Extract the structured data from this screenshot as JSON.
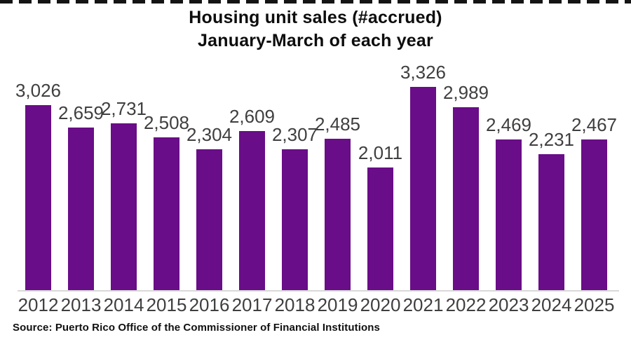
{
  "header": {
    "title_line1": "Housing unit sales (#accrued)",
    "title_line2": "January-March of each year"
  },
  "footer": {
    "source": "Source: Puerto Rico Office of the Commissioner of Financial Institutions"
  },
  "chart_data": {
    "type": "bar",
    "title": "Housing unit sales (#accrued)",
    "subtitle": "January-March of each year",
    "categories": [
      "2012",
      "2013",
      "2014",
      "2015",
      "2016",
      "2017",
      "2018",
      "2019",
      "2020",
      "2021",
      "2022",
      "2023",
      "2024",
      "2025"
    ],
    "values": [
      3026,
      2659,
      2731,
      2508,
      2304,
      2609,
      2307,
      2485,
      2011,
      3326,
      2989,
      2469,
      2231,
      2467
    ],
    "value_labels": [
      "3,026",
      "2,659",
      "2,731",
      "2,508",
      "2,304",
      "2,609",
      "2,307",
      "2,485",
      "2,011",
      "3,326",
      "2,989",
      "2,469",
      "2,231",
      "2,467"
    ],
    "xlabel": "",
    "ylabel": "",
    "ylim": [
      0,
      3326
    ],
    "grid": false,
    "legend": false,
    "data_labels_position": "above-bars",
    "colors": {
      "bar": "#690d88",
      "data_label": "#3f3f3f",
      "tick_label": "#3f3f3f",
      "axis_line": "#d9d9d9",
      "title": "#0d0d0d",
      "source_text": "#101010",
      "background": "#ffffff",
      "top_dashes": "#141414"
    }
  }
}
